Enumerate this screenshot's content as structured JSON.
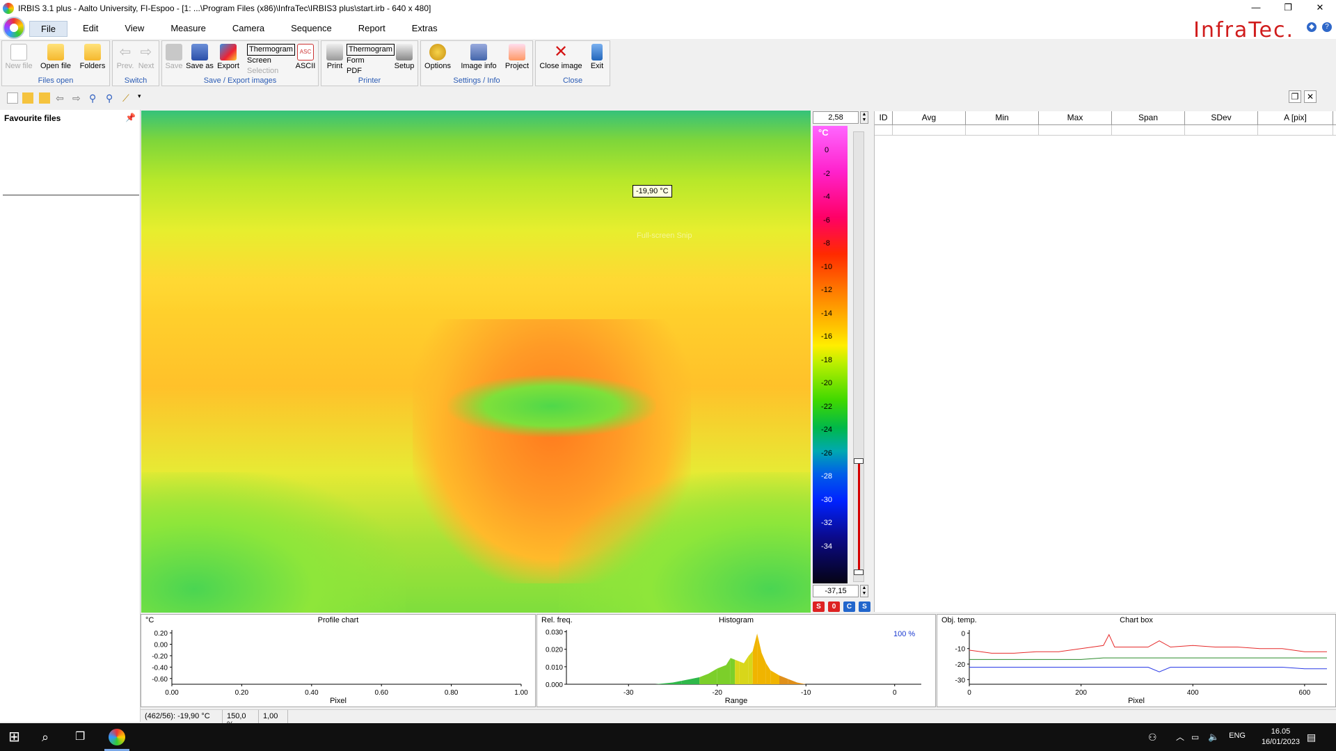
{
  "window": {
    "title": "IRBIS 3.1 plus - Aalto University, FI-Espoo - [1: ...\\Program Files (x86)\\InfraTec\\IRBIS3 plus\\start.irb - 640 x 480]",
    "controls": [
      "—",
      "❐",
      "✕"
    ]
  },
  "menu": {
    "items": [
      "File",
      "Edit",
      "View",
      "Measure",
      "Camera",
      "Sequence",
      "Report",
      "Extras"
    ],
    "active": "File",
    "logo": "InfraTec."
  },
  "ribbon": {
    "files_open": {
      "caption": "Files open",
      "new_file": "New file",
      "open_file": "Open file",
      "folders": "Folders"
    },
    "switch": {
      "caption": "Switch",
      "prev": "Prev.",
      "next": "Next"
    },
    "save_export": {
      "caption": "Save / Export images",
      "save": "Save",
      "save_as": "Save as",
      "export": "Export",
      "thermogram": "Thermogram",
      "screen": "Screen",
      "selection": "Selection",
      "ascii": "ASCII"
    },
    "printer": {
      "caption": "Printer",
      "print": "Print",
      "thermogram": "Thermogram",
      "form": "Form",
      "pdf": "PDF",
      "setup": "Setup"
    },
    "settings": {
      "caption": "Settings / Info",
      "options": "Options",
      "image_info": "Image info",
      "project": "Project"
    },
    "close": {
      "caption": "Close",
      "close_image": "Close image",
      "exit": "Exit"
    }
  },
  "left_panel": {
    "title": "Favourite files"
  },
  "image": {
    "tooltip": "-19,90 °C",
    "snip_hint": "Full-screen Snip"
  },
  "scale": {
    "max": "2,58",
    "min": "-37,15",
    "unit": "°C",
    "ticks": [
      "0",
      "-2",
      "-4",
      "-6",
      "-8",
      "-10",
      "-12",
      "-14",
      "-16",
      "-18",
      "-20",
      "-22",
      "-24",
      "-26",
      "-28",
      "-30",
      "-32",
      "-34"
    ],
    "buttons": [
      "S",
      "0",
      "C",
      "S"
    ]
  },
  "table": {
    "headers": [
      "ID",
      "Avg",
      "Min",
      "Max",
      "Span",
      "SDev",
      "A [pix]"
    ]
  },
  "profile_chart": {
    "title": "Profile chart",
    "yunit": "°C",
    "xlabel": "Pixel",
    "yticks": [
      "0.20",
      "0.00",
      "-0.20",
      "-0.40",
      "-0.60"
    ],
    "xticks": [
      "0.00",
      "0.20",
      "0.40",
      "0.60",
      "0.80",
      "1.00"
    ]
  },
  "histogram": {
    "title": "Histogram",
    "ylabel": "Rel. freq.",
    "xlabel": "Range",
    "percent": "100 %",
    "yticks": [
      "0.030",
      "0.020",
      "0.010",
      "0.000"
    ],
    "xticks": [
      "-30",
      "-20",
      "-10",
      "0"
    ]
  },
  "chart_box": {
    "title": "Chart box",
    "ylabel": "Obj. temp.",
    "xlabel": "Pixel",
    "yticks": [
      "0",
      "-10",
      "-20",
      "-30"
    ],
    "xticks": [
      "0",
      "200",
      "400",
      "600"
    ]
  },
  "chart_data": [
    {
      "type": "line",
      "title": "Profile chart",
      "xlabel": "Pixel",
      "ylabel": "°C",
      "xlim": [
        0,
        1
      ],
      "ylim": [
        -0.7,
        0.25
      ],
      "series": []
    },
    {
      "type": "area",
      "title": "Histogram",
      "xlabel": "Range",
      "ylabel": "Rel. freq.",
      "xlim": [
        -37,
        3
      ],
      "ylim": [
        0,
        0.031
      ],
      "x": [
        -27,
        -25,
        -24,
        -23,
        -22,
        -21,
        -20,
        -19,
        -18.5,
        -18,
        -17.5,
        -17,
        -16.5,
        -16,
        -15.5,
        -15,
        -14.5,
        -14,
        -13,
        -12,
        -11,
        -10
      ],
      "values": [
        0.0,
        0.001,
        0.002,
        0.003,
        0.004,
        0.006,
        0.009,
        0.011,
        0.015,
        0.014,
        0.013,
        0.012,
        0.016,
        0.019,
        0.029,
        0.018,
        0.012,
        0.008,
        0.005,
        0.003,
        0.001,
        0.0
      ]
    },
    {
      "type": "line",
      "title": "Chart box",
      "xlabel": "Pixel",
      "ylabel": "Obj. temp.",
      "xlim": [
        0,
        640
      ],
      "ylim": [
        -33,
        2
      ],
      "x": [
        0,
        40,
        80,
        120,
        160,
        200,
        240,
        250,
        260,
        300,
        320,
        340,
        360,
        400,
        440,
        480,
        520,
        560,
        600,
        640
      ],
      "series": [
        {
          "name": "max",
          "color": "#e62a2a",
          "values": [
            -11,
            -13,
            -13,
            -12,
            -12,
            -10,
            -8,
            -1,
            -9,
            -9,
            -9,
            -5,
            -9,
            -8,
            -9,
            -9,
            -10,
            -10,
            -12,
            -12
          ]
        },
        {
          "name": "avg",
          "color": "#2a8a2a",
          "values": [
            -17,
            -17,
            -17,
            -17,
            -17,
            -17,
            -16,
            -16,
            -16,
            -16,
            -16,
            -16,
            -16,
            -16,
            -16,
            -16,
            -16,
            -16,
            -16,
            -16
          ]
        },
        {
          "name": "min",
          "color": "#2a3ae6",
          "values": [
            -22,
            -22,
            -22,
            -22,
            -22,
            -22,
            -22,
            -22,
            -22,
            -22,
            -22,
            -25,
            -22,
            -22,
            -22,
            -22,
            -22,
            -22,
            -23,
            -23
          ]
        }
      ]
    }
  ],
  "status": {
    "position": "(462/56): -19,90 °C",
    "zoom": "150,0 %",
    "emissivity": "1,00"
  },
  "taskbar": {
    "time": "16.05",
    "date": "16/01/2023",
    "lang": "ENG"
  }
}
